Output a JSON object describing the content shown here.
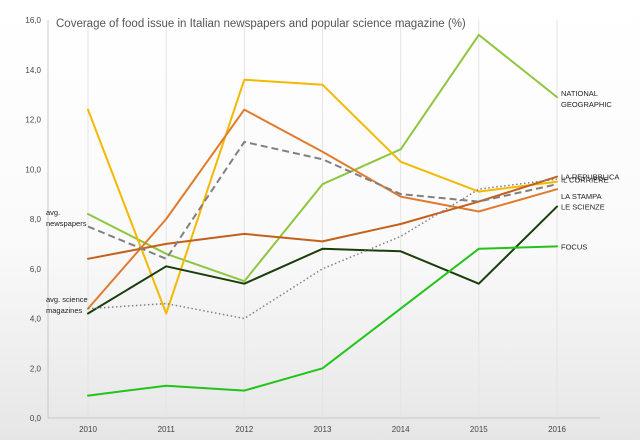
{
  "chart_data": {
    "type": "line",
    "title": "Coverage of food issue in Italian newspapers and popular science magazine (%)",
    "xlabel": "",
    "ylabel": "",
    "categories": [
      "2010",
      "2011",
      "2012",
      "2013",
      "2014",
      "2015",
      "2016"
    ],
    "ylim": [
      0,
      16
    ],
    "yticks": [
      "0,0",
      "2,0",
      "4,0",
      "6,0",
      "8,0",
      "10,0",
      "12,0",
      "14,0",
      "16,0"
    ],
    "series": [
      {
        "name": "NATIONAL GEOGRAPHIC",
        "label_lines": [
          "NATIONAL",
          "GEOGRAPHIC"
        ],
        "label_side": "right",
        "color": "#8dc63f",
        "dash": "",
        "values": [
          8.2,
          6.6,
          5.5,
          9.4,
          10.8,
          15.4,
          12.9
        ]
      },
      {
        "name": "IL CORRIERE",
        "label_lines": [
          "IL CORRIERE"
        ],
        "label_side": "right",
        "color": "#f5b800",
        "dash": "",
        "values": [
          12.4,
          4.2,
          13.6,
          13.4,
          10.3,
          9.1,
          9.5
        ]
      },
      {
        "name": "LA STAMPA",
        "label_lines": [
          "LA STAMPA"
        ],
        "label_side": "right",
        "color": "#e07b2e",
        "dash": "",
        "values": [
          4.4,
          8.0,
          12.4,
          10.7,
          8.9,
          8.3,
          9.2
        ]
      },
      {
        "name": "LA REPUBBLICA",
        "label_lines": [
          "LA REPUBBLICA"
        ],
        "label_side": "right",
        "color": "#c5601a",
        "dash": "",
        "values": [
          6.4,
          7.0,
          7.4,
          7.1,
          7.8,
          8.7,
          9.7
        ]
      },
      {
        "name": "avg. newspapers",
        "label_lines": [
          "avg.",
          "newspapers"
        ],
        "label_side": "left",
        "color": "#808080",
        "dash": "7,4",
        "values": [
          7.7,
          6.4,
          11.1,
          10.4,
          9.0,
          8.7,
          9.4
        ]
      },
      {
        "name": "LE SCIENZE",
        "label_lines": [
          "LE SCIENZE"
        ],
        "label_side": "right",
        "color": "#1a3d0a",
        "dash": "",
        "values": [
          4.2,
          6.1,
          5.4,
          6.8,
          6.7,
          5.4,
          8.5
        ]
      },
      {
        "name": "avg. science magazines",
        "label_lines": [
          "avg.  science",
          "magazines"
        ],
        "label_side": "left",
        "color": "#808080",
        "dash": "1.5,2.5",
        "values": [
          4.4,
          4.6,
          4.0,
          6.0,
          7.3,
          9.2,
          9.6
        ]
      },
      {
        "name": "FOCUS",
        "label_lines": [
          "FOCUS"
        ],
        "label_side": "right",
        "color": "#22c41a",
        "dash": "",
        "values": [
          0.9,
          1.3,
          1.1,
          2.0,
          4.4,
          6.8,
          6.9
        ]
      }
    ]
  }
}
